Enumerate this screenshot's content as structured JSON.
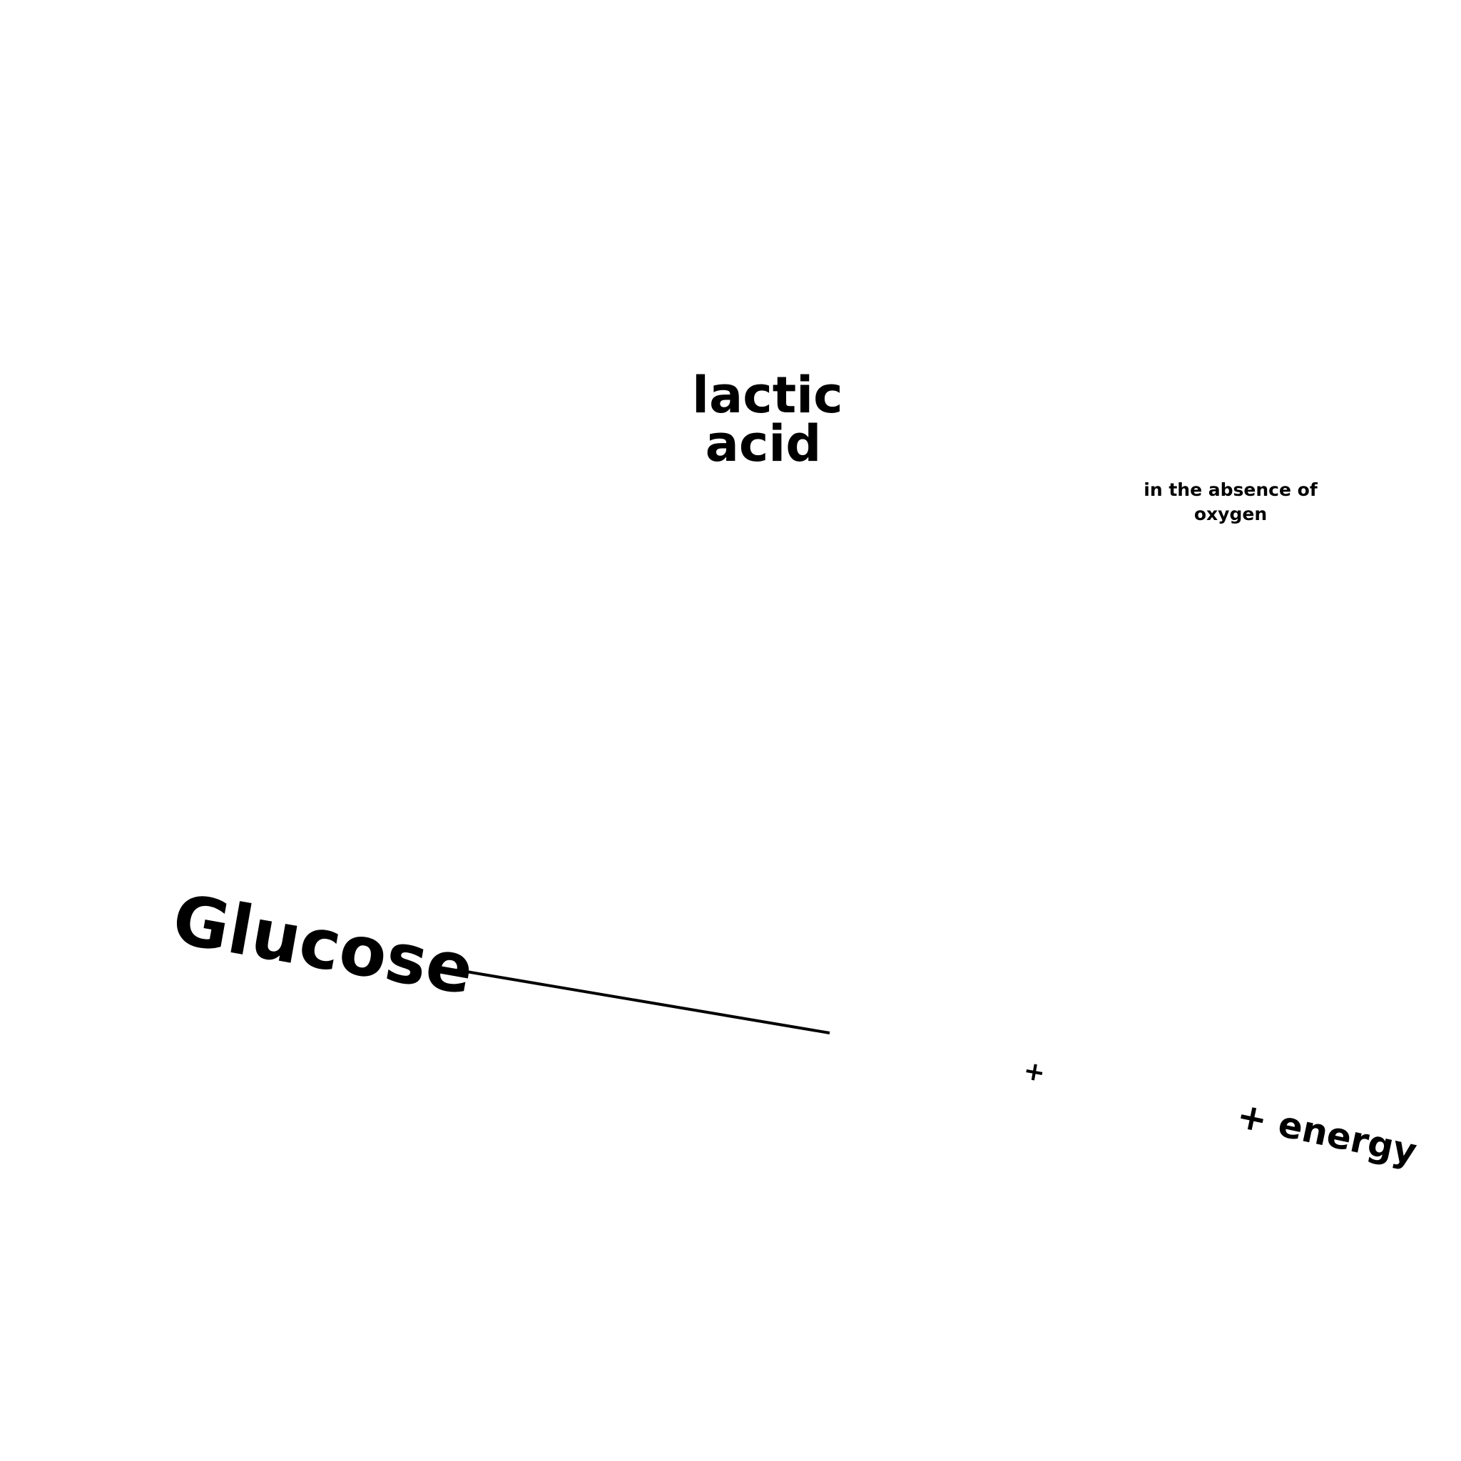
{
  "diagram": {
    "product_top": "lactic acid",
    "condition": "in the absence of oxygen",
    "reactant": "Glucose",
    "plus": "+",
    "energy": "+ energy"
  },
  "colors": {
    "text": "#000000",
    "background": "#ffffff"
  }
}
